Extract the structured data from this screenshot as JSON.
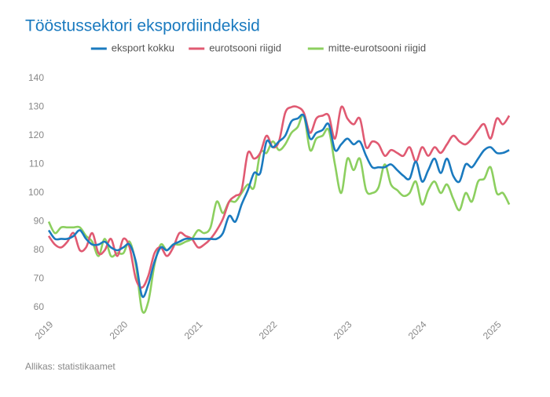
{
  "chart_data": {
    "type": "line",
    "title": "Tööstussektori ekspordiindeksid",
    "source": "Allikas: statistikaamet",
    "x": [
      2019,
      2019.083,
      2019.167,
      2019.25,
      2019.333,
      2019.417,
      2019.5,
      2019.583,
      2019.667,
      2019.75,
      2019.833,
      2019.917,
      2020,
      2020.083,
      2020.167,
      2020.25,
      2020.333,
      2020.417,
      2020.5,
      2020.583,
      2020.667,
      2020.75,
      2020.833,
      2020.917,
      2021,
      2021.083,
      2021.167,
      2021.25,
      2021.333,
      2021.417,
      2021.5,
      2021.583,
      2021.667,
      2021.75,
      2021.833,
      2021.917,
      2022,
      2022.083,
      2022.167,
      2022.25,
      2022.333,
      2022.417,
      2022.5,
      2022.583,
      2022.667,
      2022.75,
      2022.833,
      2022.917,
      2023,
      2023.083,
      2023.167,
      2023.25,
      2023.333,
      2023.417,
      2023.5,
      2023.583,
      2023.667,
      2023.75,
      2023.833,
      2023.917,
      2024,
      2024.083,
      2024.167,
      2024.25,
      2024.333,
      2024.417,
      2024.5,
      2024.583,
      2024.667,
      2024.75,
      2024.833,
      2024.917,
      2025,
      2025.083,
      2025.167
    ],
    "series": [
      {
        "name": "eksport kokku",
        "color": "#1a7abf",
        "values": [
          87,
          84,
          84,
          84,
          85,
          87,
          84,
          82,
          82,
          83,
          81,
          80,
          81,
          82,
          76,
          64,
          68,
          76,
          81,
          80,
          82,
          83,
          84,
          84,
          84,
          84,
          84,
          84,
          86,
          92,
          90,
          96,
          101,
          107,
          107,
          118,
          116,
          118,
          120,
          125,
          126,
          127,
          119,
          121,
          122,
          124,
          115,
          117,
          119,
          117,
          118,
          113,
          109,
          109,
          109,
          110,
          108,
          106,
          105,
          111,
          104,
          108,
          112,
          107,
          112,
          106,
          104,
          110,
          109,
          112,
          115,
          116,
          114,
          114,
          115
        ]
      },
      {
        "name": "eurotsooni riigid",
        "color": "#e05a72",
        "values": [
          85,
          82,
          81,
          83,
          86,
          80,
          81,
          86,
          79,
          80,
          84,
          78,
          84,
          81,
          70,
          67,
          71,
          79,
          81,
          78,
          81,
          86,
          85,
          84,
          81,
          82,
          84,
          87,
          91,
          97,
          99,
          101,
          114,
          112,
          114,
          120,
          116,
          118,
          128,
          130,
          130,
          128,
          121,
          126,
          127,
          127,
          119,
          130,
          126,
          124,
          126,
          116,
          118,
          117,
          113,
          115,
          114,
          113,
          116,
          111,
          116,
          113,
          116,
          114,
          117,
          120,
          118,
          117,
          119,
          122,
          124,
          119,
          126,
          124,
          127
        ]
      },
      {
        "name": "mitte-eurotsooni riigid",
        "color": "#8ccf5f",
        "values": [
          90,
          86,
          88,
          88,
          88,
          88,
          85,
          83,
          78,
          84,
          78,
          79,
          79,
          83,
          75,
          59,
          62,
          75,
          82,
          80,
          82,
          82,
          83,
          84,
          87,
          86,
          88,
          97,
          93,
          97,
          97,
          100,
          103,
          102,
          114,
          114,
          118,
          115,
          117,
          121,
          123,
          127,
          115,
          119,
          120,
          122,
          110,
          100,
          112,
          108,
          112,
          101,
          100,
          102,
          110,
          103,
          101,
          99,
          100,
          104,
          96,
          101,
          104,
          100,
          103,
          98,
          94,
          100,
          97,
          104,
          105,
          109,
          100,
          100,
          96
        ]
      }
    ],
    "xlim": [
      2019,
      2025.25
    ],
    "xticks": [
      2019,
      2020,
      2021,
      2022,
      2023,
      2024,
      2025
    ],
    "ylim": [
      60,
      140
    ],
    "yticks": [
      60,
      70,
      80,
      90,
      100,
      110,
      120,
      130,
      140
    ],
    "grid": false,
    "legend": "top"
  }
}
